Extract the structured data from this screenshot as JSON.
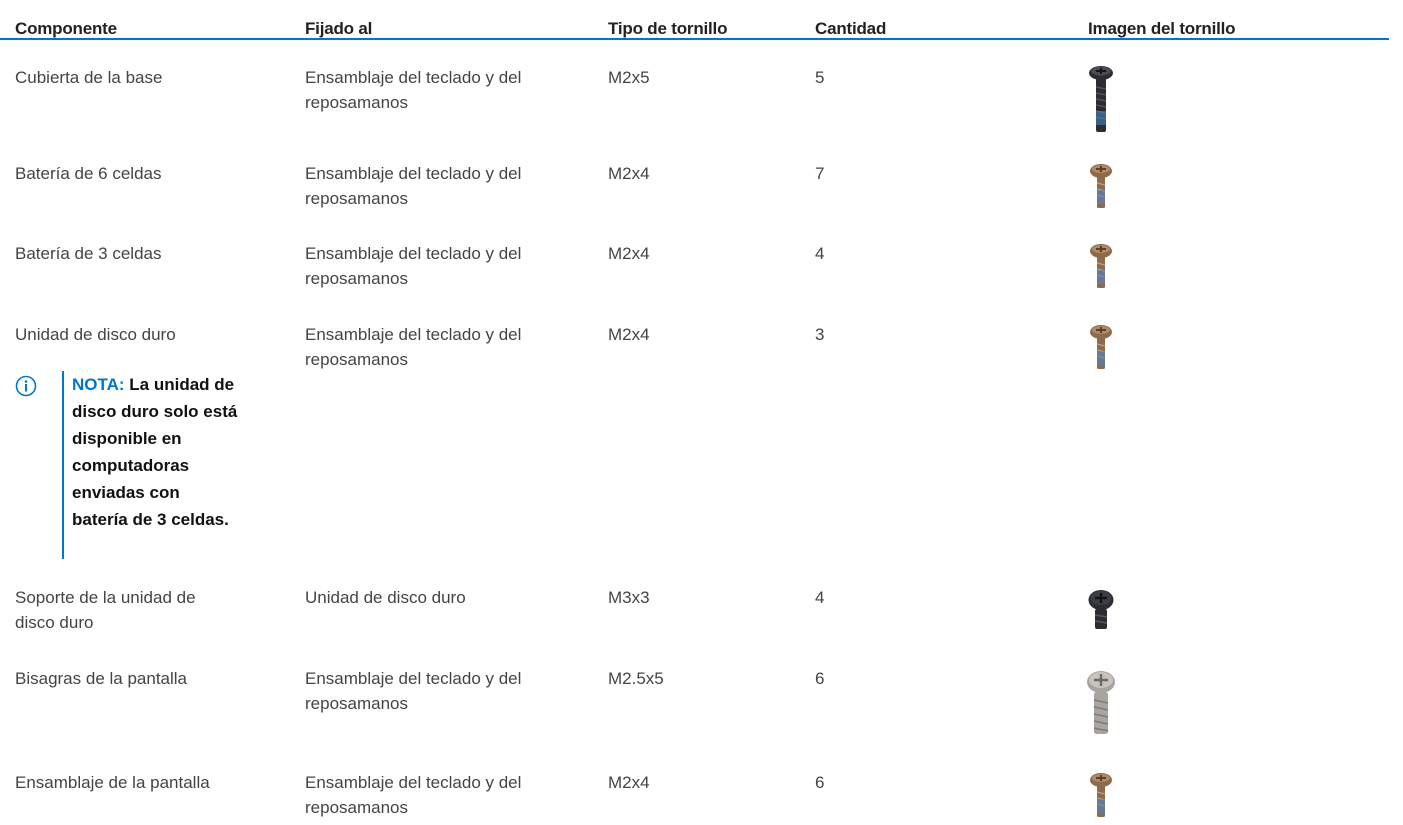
{
  "table": {
    "headers": [
      "Componente",
      "Fijado al",
      "Tipo de tornillo",
      "Cantidad",
      "Imagen del tornillo"
    ],
    "rows": [
      {
        "componente": "Cubierta de la base",
        "fijado_l1": "Ensamblaje del teclado y del",
        "fijado_l2": "reposamanos",
        "tipo": "M2x5",
        "cantidad": "5",
        "screw_icon": "black-long-screw-icon"
      },
      {
        "componente": "Batería de 6 celdas",
        "fijado_l1": "Ensamblaje del teclado y del",
        "fijado_l2": "reposamanos",
        "tipo": "M2x4",
        "cantidad": "7",
        "screw_icon": "bronze-short-screw-icon"
      },
      {
        "componente": "Batería de 3 celdas",
        "fijado_l1": "Ensamblaje del teclado y del",
        "fijado_l2": "reposamanos",
        "tipo": "M2x4",
        "cantidad": "4",
        "screw_icon": "bronze-short-screw-icon"
      },
      {
        "componente": "Unidad de disco duro",
        "fijado_l1": "Ensamblaje del teclado y del",
        "fijado_l2": "reposamanos",
        "tipo": "M2x4",
        "cantidad": "3",
        "screw_icon": "bronze-short-screw-icon"
      },
      {
        "componente_l1": "Soporte de la unidad de",
        "componente_l2": "disco duro",
        "fijado_l1": "Unidad de disco duro",
        "tipo": "M3x3",
        "cantidad": "4",
        "screw_icon": "black-wide-screw-icon"
      },
      {
        "componente": "Bisagras de la pantalla",
        "fijado_l1": "Ensamblaje del teclado y del",
        "fijado_l2": "reposamanos",
        "tipo": "M2.5x5",
        "cantidad": "6",
        "screw_icon": "silver-large-screw-icon"
      },
      {
        "componente": "Ensamblaje de la pantalla",
        "fijado_l1": "Ensamblaje del teclado y del",
        "fijado_l2": "reposamanos",
        "tipo": "M2x4",
        "cantidad": "6",
        "screw_icon": "bronze-short-screw-icon"
      }
    ]
  },
  "note": {
    "label": "NOTA:",
    "lines": [
      " La unidad de",
      "disco duro solo está",
      "disponible en",
      "computadoras",
      "enviadas con",
      "batería de 3 celdas."
    ],
    "icon": "info-icon"
  },
  "colors": {
    "accent": "#0076ce",
    "text": "#444444",
    "screw_black": "#2b2d31",
    "screw_bronze": "#8c6a4c",
    "screw_silver": "#a8a5a0",
    "thread_lock": "#4f86c6"
  }
}
